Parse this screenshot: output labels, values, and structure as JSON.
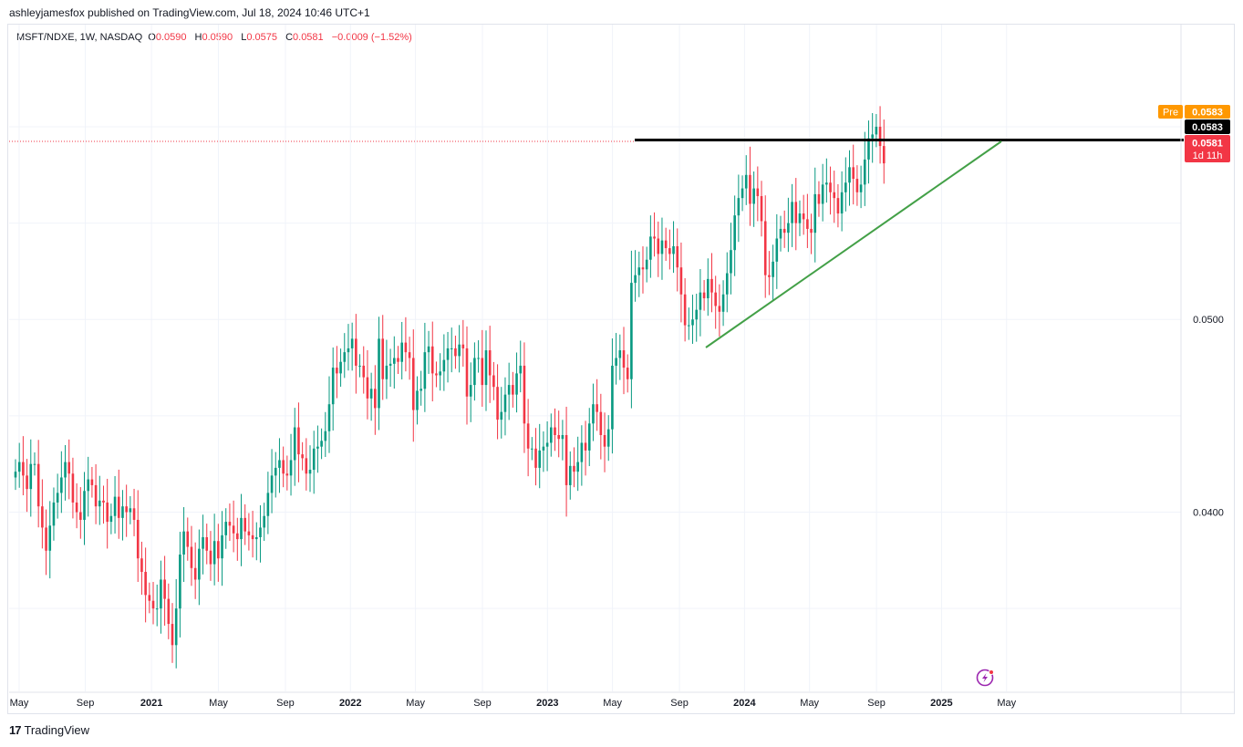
{
  "header": {
    "published": "ashleyjamesfox published on TradingView.com, Jul 18, 2024 10:46 UTC+1"
  },
  "legend": {
    "symbol": "MSFT/NDXE, 1W, NASDAQ",
    "o_label": "O",
    "o_value": "0.0590",
    "h_label": "H",
    "h_value": "0.0590",
    "l_label": "L",
    "l_value": "0.0575",
    "c_label": "C",
    "c_value": "0.0581",
    "change": "−0.0009 (−1.52%)"
  },
  "price_labels": {
    "pre_tag": "Pre",
    "pre_value": "0.0583",
    "black_value": "0.0583",
    "last_value": "0.0581",
    "countdown": "1d 11h"
  },
  "footer": {
    "brand": "TradingView",
    "logo": "17"
  },
  "colors": {
    "up": "#089981",
    "down": "#f23645",
    "trend": "#43a047",
    "pre": "#ff9800",
    "level": "#000000"
  },
  "chart_data": {
    "type": "candlestick",
    "title": "MSFT/NDXE, 1W, NASDAQ",
    "ylim": [
      0.0307,
      0.0653
    ],
    "y_ticks": [
      "0.0400",
      "0.0500"
    ],
    "x_tick_labels": [
      "May",
      "Sep",
      "2021",
      "May",
      "Sep",
      "2022",
      "May",
      "Sep",
      "2023",
      "May",
      "Sep",
      "2024",
      "May",
      "Sep",
      "2025",
      "May"
    ],
    "x_tick_weeks": [
      0,
      17.3,
      34.6,
      52.1,
      69.6,
      86.6,
      103.6,
      121.1,
      138.1,
      155.1,
      172.6,
      189.6,
      206.6,
      224.1,
      241.1,
      258.1
    ],
    "candles_start": "2020-04-27",
    "closes": [
      0.0421,
      0.0426,
      0.0419,
      0.0412,
      0.0425,
      0.0425,
      0.0403,
      0.0392,
      0.038,
      0.0393,
      0.0405,
      0.041,
      0.0418,
      0.0426,
      0.042,
      0.0405,
      0.04,
      0.0396,
      0.0411,
      0.0417,
      0.0414,
      0.0403,
      0.0406,
      0.0405,
      0.0395,
      0.0398,
      0.0408,
      0.0397,
      0.0403,
      0.04,
      0.0402,
      0.0396,
      0.0376,
      0.0369,
      0.0357,
      0.0354,
      0.035,
      0.035,
      0.0365,
      0.0355,
      0.0342,
      0.0331,
      0.035,
      0.0378,
      0.039,
      0.0382,
      0.0371,
      0.0365,
      0.0381,
      0.0387,
      0.038,
      0.0373,
      0.0385,
      0.0376,
      0.0388,
      0.0395,
      0.0393,
      0.0389,
      0.0386,
      0.0397,
      0.039,
      0.0388,
      0.0386,
      0.0387,
      0.0392,
      0.0398,
      0.041,
      0.0419,
      0.0423,
      0.0427,
      0.042,
      0.0419,
      0.0427,
      0.0444,
      0.043,
      0.0428,
      0.042,
      0.0422,
      0.0433,
      0.0434,
      0.0437,
      0.0442,
      0.0456,
      0.0475,
      0.0472,
      0.0478,
      0.0483,
      0.0485,
      0.049,
      0.0476,
      0.0476,
      0.047,
      0.0459,
      0.0464,
      0.0454,
      0.049,
      0.0469,
      0.0476,
      0.0477,
      0.048,
      0.0478,
      0.0488,
      0.0483,
      0.048,
      0.0453,
      0.0463,
      0.0464,
      0.0483,
      0.0486,
      0.0472,
      0.0471,
      0.0473,
      0.0479,
      0.0485,
      0.0485,
      0.0481,
      0.0487,
      0.0485,
      0.046,
      0.0466,
      0.048,
      0.048,
      0.0466,
      0.0484,
      0.0471,
      0.0465,
      0.0448,
      0.0452,
      0.0461,
      0.0466,
      0.0461,
      0.0472,
      0.0476,
      0.0446,
      0.0433,
      0.0433,
      0.0423,
      0.0432,
      0.0434,
      0.0436,
      0.0444,
      0.044,
      0.0438,
      0.044,
      0.0414,
      0.0424,
      0.0421,
      0.0426,
      0.0436,
      0.0432,
      0.0446,
      0.0456,
      0.0452,
      0.044,
      0.0434,
      0.0443,
      0.0476,
      0.048,
      0.0484,
      0.0475,
      0.0469,
      0.0519,
      0.0523,
      0.0527,
      0.0526,
      0.0531,
      0.0543,
      0.0542,
      0.0534,
      0.0541,
      0.0537,
      0.0534,
      0.0538,
      0.0527,
      0.0513,
      0.0497,
      0.0497,
      0.05,
      0.0505,
      0.0514,
      0.0511,
      0.0521,
      0.0514,
      0.0507,
      0.0504,
      0.0513,
      0.0524,
      0.0536,
      0.0554,
      0.0563,
      0.0568,
      0.0575,
      0.056,
      0.0568,
      0.0564,
      0.0551,
      0.0523,
      0.0522,
      0.053,
      0.0542,
      0.0547,
      0.0545,
      0.055,
      0.0561,
      0.055,
      0.0555,
      0.0552,
      0.0547,
      0.0545,
      0.0565,
      0.056,
      0.057,
      0.0571,
      0.0566,
      0.0563,
      0.0555,
      0.0566,
      0.0571,
      0.0579,
      0.0573,
      0.0566,
      0.057,
      0.0583,
      0.0594,
      0.0596,
      0.06,
      0.059,
      0.0581
    ]
  }
}
